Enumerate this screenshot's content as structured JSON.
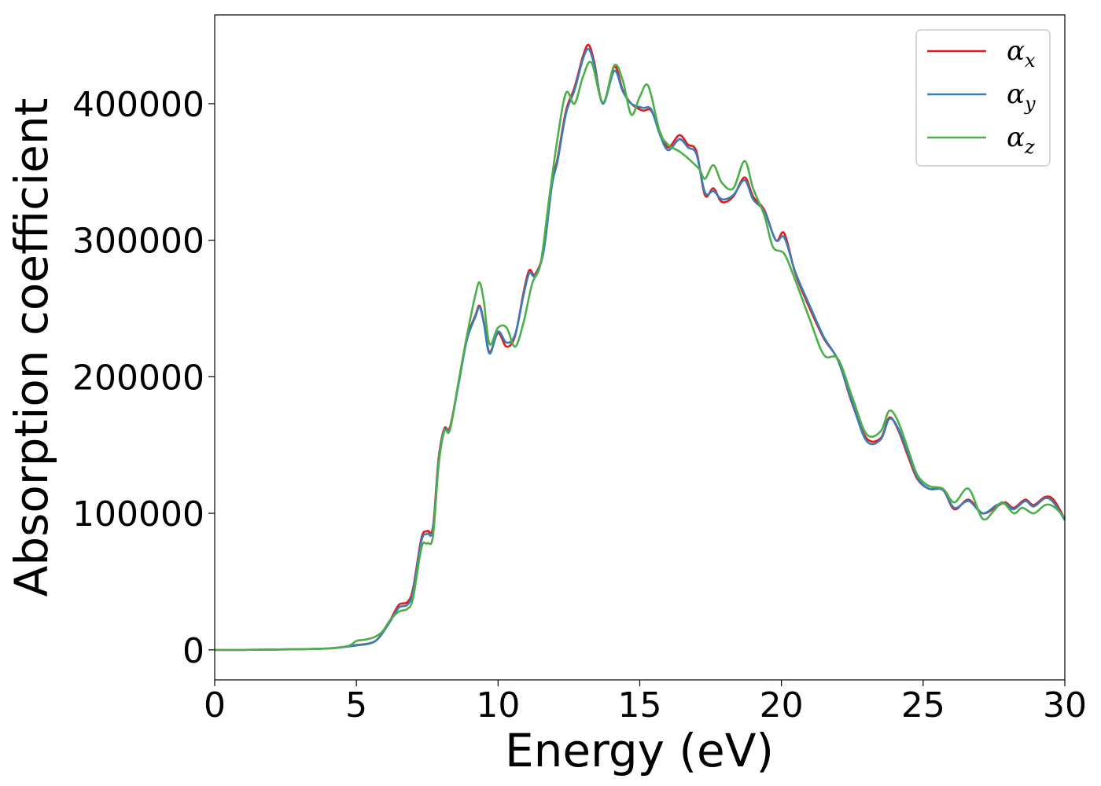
{
  "chart_data": {
    "type": "line",
    "title": "",
    "xlabel": "Energy (eV)",
    "ylabel": "Absorption coefficient",
    "xlim": [
      0,
      30
    ],
    "ylim": [
      -22000,
      465000
    ],
    "xticks": [
      0,
      5,
      10,
      15,
      20,
      25,
      30
    ],
    "yticks": [
      0,
      100000,
      200000,
      300000,
      400000
    ],
    "grid": false,
    "legend_position": "top-right",
    "series": [
      {
        "name": "α",
        "subscript": "x",
        "color": "#e41a1c",
        "points": [
          [
            0,
            0
          ],
          [
            1,
            0
          ],
          [
            2,
            200
          ],
          [
            3,
            500
          ],
          [
            4,
            1000
          ],
          [
            4.7,
            2500
          ],
          [
            5,
            3500
          ],
          [
            5.5,
            5000
          ],
          [
            5.8,
            9000
          ],
          [
            6.2,
            22000
          ],
          [
            6.5,
            33000
          ],
          [
            6.8,
            35000
          ],
          [
            7,
            45000
          ],
          [
            7.3,
            82000
          ],
          [
            7.5,
            87000
          ],
          [
            7.7,
            90000
          ],
          [
            7.9,
            140000
          ],
          [
            8.1,
            162000
          ],
          [
            8.3,
            163000
          ],
          [
            8.6,
            195000
          ],
          [
            8.9,
            228000
          ],
          [
            9.2,
            245000
          ],
          [
            9.35,
            252000
          ],
          [
            9.5,
            240000
          ],
          [
            9.7,
            218000
          ],
          [
            10,
            232000
          ],
          [
            10.3,
            222000
          ],
          [
            10.6,
            230000
          ],
          [
            10.9,
            262000
          ],
          [
            11.1,
            278000
          ],
          [
            11.3,
            275000
          ],
          [
            11.6,
            292000
          ],
          [
            11.9,
            342000
          ],
          [
            12.1,
            360000
          ],
          [
            12.4,
            395000
          ],
          [
            12.7,
            412000
          ],
          [
            13,
            435000
          ],
          [
            13.2,
            443000
          ],
          [
            13.4,
            430000
          ],
          [
            13.7,
            400000
          ],
          [
            14.1,
            427000
          ],
          [
            14.4,
            410000
          ],
          [
            14.7,
            400000
          ],
          [
            15.1,
            395000
          ],
          [
            15.4,
            395000
          ],
          [
            15.7,
            380000
          ],
          [
            16,
            368000
          ],
          [
            16.4,
            377000
          ],
          [
            16.7,
            370000
          ],
          [
            17,
            365000
          ],
          [
            17.3,
            333000
          ],
          [
            17.6,
            338000
          ],
          [
            17.9,
            328000
          ],
          [
            18.3,
            332000
          ],
          [
            18.7,
            346000
          ],
          [
            19,
            332000
          ],
          [
            19.4,
            322000
          ],
          [
            19.8,
            300000
          ],
          [
            20.1,
            305000
          ],
          [
            20.5,
            275000
          ],
          [
            21,
            250000
          ],
          [
            21.5,
            228000
          ],
          [
            22,
            212000
          ],
          [
            22.5,
            180000
          ],
          [
            23,
            155000
          ],
          [
            23.5,
            155000
          ],
          [
            23.8,
            170000
          ],
          [
            24.1,
            162000
          ],
          [
            24.5,
            140000
          ],
          [
            24.8,
            125000
          ],
          [
            25.2,
            118000
          ],
          [
            25.7,
            117000
          ],
          [
            26.1,
            103000
          ],
          [
            26.6,
            110000
          ],
          [
            27.1,
            100000
          ],
          [
            27.6,
            105000
          ],
          [
            27.9,
            108000
          ],
          [
            28.2,
            104000
          ],
          [
            28.6,
            110000
          ],
          [
            28.9,
            106000
          ],
          [
            29.3,
            112000
          ],
          [
            29.6,
            110000
          ],
          [
            30,
            96000
          ]
        ]
      },
      {
        "name": "α",
        "subscript": "y",
        "color": "#377eb8",
        "points": [
          [
            0,
            0
          ],
          [
            1,
            0
          ],
          [
            2,
            200
          ],
          [
            3,
            500
          ],
          [
            4,
            1000
          ],
          [
            4.7,
            2400
          ],
          [
            5,
            3200
          ],
          [
            5.5,
            4800
          ],
          [
            5.8,
            9000
          ],
          [
            6.2,
            21000
          ],
          [
            6.5,
            31000
          ],
          [
            6.8,
            33000
          ],
          [
            7,
            43000
          ],
          [
            7.3,
            80000
          ],
          [
            7.5,
            85000
          ],
          [
            7.7,
            88000
          ],
          [
            7.9,
            138000
          ],
          [
            8.1,
            161000
          ],
          [
            8.3,
            162000
          ],
          [
            8.6,
            194000
          ],
          [
            8.9,
            227000
          ],
          [
            9.2,
            244000
          ],
          [
            9.35,
            251000
          ],
          [
            9.5,
            239000
          ],
          [
            9.7,
            217000
          ],
          [
            10,
            233000
          ],
          [
            10.3,
            225000
          ],
          [
            10.6,
            231000
          ],
          [
            10.9,
            260000
          ],
          [
            11.1,
            276000
          ],
          [
            11.3,
            274000
          ],
          [
            11.6,
            291000
          ],
          [
            11.9,
            340000
          ],
          [
            12.1,
            358000
          ],
          [
            12.4,
            393000
          ],
          [
            12.7,
            410000
          ],
          [
            13,
            433000
          ],
          [
            13.2,
            440000
          ],
          [
            13.4,
            428000
          ],
          [
            13.7,
            400000
          ],
          [
            14.1,
            424000
          ],
          [
            14.4,
            409000
          ],
          [
            14.7,
            400000
          ],
          [
            15.1,
            397000
          ],
          [
            15.4,
            396000
          ],
          [
            15.7,
            378000
          ],
          [
            16,
            366000
          ],
          [
            16.4,
            374000
          ],
          [
            16.7,
            368000
          ],
          [
            17,
            363000
          ],
          [
            17.3,
            335000
          ],
          [
            17.6,
            336000
          ],
          [
            17.9,
            330000
          ],
          [
            18.3,
            333000
          ],
          [
            18.7,
            344000
          ],
          [
            19,
            330000
          ],
          [
            19.4,
            321000
          ],
          [
            19.8,
            300000
          ],
          [
            20.1,
            302000
          ],
          [
            20.5,
            276000
          ],
          [
            21,
            252000
          ],
          [
            21.5,
            229000
          ],
          [
            22,
            212000
          ],
          [
            22.5,
            181000
          ],
          [
            23,
            153000
          ],
          [
            23.5,
            154000
          ],
          [
            23.8,
            169000
          ],
          [
            24.1,
            163000
          ],
          [
            24.5,
            142000
          ],
          [
            24.8,
            126000
          ],
          [
            25.2,
            118000
          ],
          [
            25.7,
            117000
          ],
          [
            26.1,
            104000
          ],
          [
            26.6,
            109000
          ],
          [
            27.1,
            100000
          ],
          [
            27.6,
            106000
          ],
          [
            27.9,
            107000
          ],
          [
            28.2,
            103000
          ],
          [
            28.6,
            109000
          ],
          [
            28.9,
            105000
          ],
          [
            29.3,
            111000
          ],
          [
            29.6,
            108000
          ],
          [
            30,
            95000
          ]
        ]
      },
      {
        "name": "α",
        "subscript": "z",
        "color": "#4daf4a",
        "points": [
          [
            0,
            0
          ],
          [
            1,
            0
          ],
          [
            2,
            200
          ],
          [
            3,
            500
          ],
          [
            4,
            1100
          ],
          [
            4.7,
            2800
          ],
          [
            5,
            6500
          ],
          [
            5.3,
            7500
          ],
          [
            5.6,
            9000
          ],
          [
            5.9,
            13000
          ],
          [
            6.2,
            22000
          ],
          [
            6.5,
            28000
          ],
          [
            6.8,
            30000
          ],
          [
            7,
            38000
          ],
          [
            7.3,
            75000
          ],
          [
            7.5,
            78000
          ],
          [
            7.7,
            83000
          ],
          [
            7.9,
            135000
          ],
          [
            8.1,
            160000
          ],
          [
            8.3,
            161000
          ],
          [
            8.6,
            196000
          ],
          [
            8.9,
            230000
          ],
          [
            9.2,
            260000
          ],
          [
            9.35,
            269000
          ],
          [
            9.5,
            255000
          ],
          [
            9.7,
            224000
          ],
          [
            10,
            236000
          ],
          [
            10.3,
            236000
          ],
          [
            10.6,
            222000
          ],
          [
            10.9,
            240000
          ],
          [
            11.2,
            268000
          ],
          [
            11.5,
            283000
          ],
          [
            11.8,
            330000
          ],
          [
            12.1,
            375000
          ],
          [
            12.4,
            408000
          ],
          [
            12.7,
            400000
          ],
          [
            13,
            420000
          ],
          [
            13.3,
            430000
          ],
          [
            13.7,
            401000
          ],
          [
            14.1,
            428000
          ],
          [
            14.4,
            417000
          ],
          [
            14.7,
            392000
          ],
          [
            15,
            405000
          ],
          [
            15.3,
            413000
          ],
          [
            15.7,
            380000
          ],
          [
            16,
            370000
          ],
          [
            16.4,
            365000
          ],
          [
            16.7,
            360000
          ],
          [
            17.1,
            352000
          ],
          [
            17.3,
            345000
          ],
          [
            17.6,
            355000
          ],
          [
            17.9,
            342000
          ],
          [
            18.3,
            338000
          ],
          [
            18.7,
            358000
          ],
          [
            19,
            338000
          ],
          [
            19.4,
            318000
          ],
          [
            19.7,
            295000
          ],
          [
            20.1,
            290000
          ],
          [
            20.5,
            270000
          ],
          [
            21,
            242000
          ],
          [
            21.5,
            216000
          ],
          [
            22,
            213000
          ],
          [
            22.5,
            185000
          ],
          [
            23,
            158000
          ],
          [
            23.5,
            160000
          ],
          [
            23.8,
            175000
          ],
          [
            24.1,
            168000
          ],
          [
            24.5,
            145000
          ],
          [
            24.8,
            128000
          ],
          [
            25.2,
            120000
          ],
          [
            25.7,
            118000
          ],
          [
            26.1,
            108000
          ],
          [
            26.6,
            118000
          ],
          [
            27.1,
            96000
          ],
          [
            27.5,
            102000
          ],
          [
            27.8,
            108000
          ],
          [
            28.2,
            100000
          ],
          [
            28.5,
            104000
          ],
          [
            28.9,
            100000
          ],
          [
            29.3,
            106000
          ],
          [
            29.6,
            105000
          ],
          [
            30,
            97000
          ]
        ]
      }
    ]
  }
}
